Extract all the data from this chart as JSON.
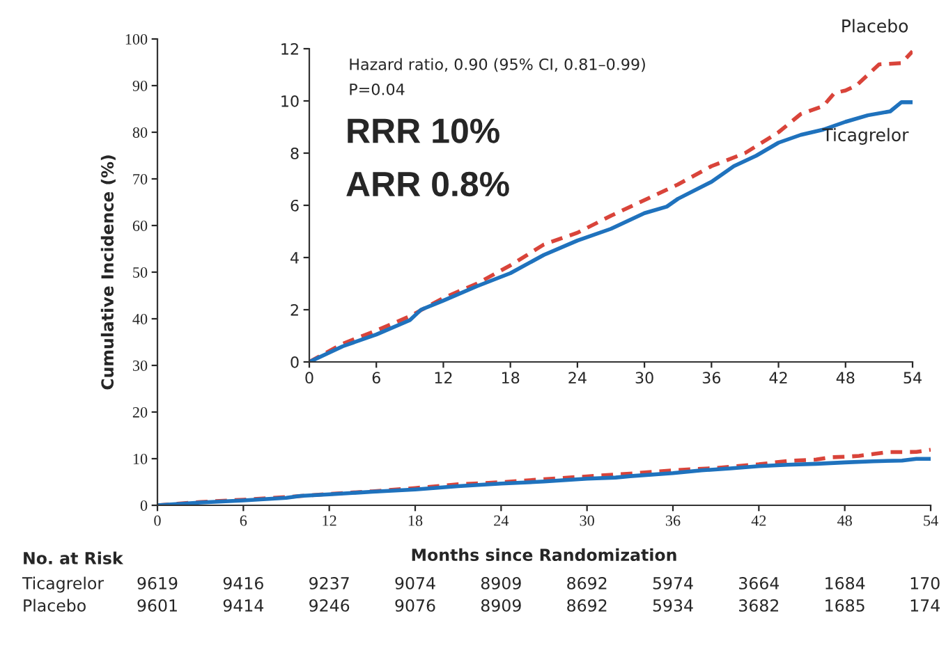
{
  "chart_data": [
    {
      "type": "line",
      "xlabel": "Months since Randomization",
      "ylabel": "Cumulative Incidence (%)",
      "xlim": [
        0,
        54
      ],
      "ylim": [
        0,
        100
      ],
      "xticks": [
        0,
        6,
        12,
        18,
        24,
        30,
        36,
        42,
        48,
        54
      ],
      "yticks": [
        0,
        10,
        20,
        30,
        40,
        50,
        60,
        70,
        80,
        90,
        100
      ],
      "grid": false,
      "legend": false,
      "series": [
        {
          "color": "#d9443a",
          "line_style": "dashed",
          "x": [
            0,
            3,
            6,
            9,
            12,
            15,
            18,
            21,
            24,
            27,
            30,
            32,
            33,
            36,
            39,
            42,
            44,
            46,
            47,
            48,
            49,
            50,
            51,
            53,
            54
          ],
          "values": [
            0,
            0.7,
            1.2,
            1.75,
            2.45,
            3.0,
            3.7,
            4.5,
            4.95,
            5.6,
            6.2,
            6.6,
            6.8,
            7.5,
            8.0,
            8.8,
            9.5,
            9.8,
            10.3,
            10.4,
            10.6,
            11.0,
            11.4,
            11.45,
            11.9
          ]
        },
        {
          "color": "#1f72bd",
          "line_style": "solid",
          "x": [
            0,
            3,
            6,
            9,
            10,
            12,
            15,
            18,
            21,
            24,
            27,
            30,
            32,
            33,
            36,
            38,
            40,
            42,
            44,
            46,
            48,
            50,
            52,
            53,
            54
          ],
          "values": [
            0,
            0.6,
            1.05,
            1.6,
            2.0,
            2.35,
            2.9,
            3.4,
            4.1,
            4.65,
            5.1,
            5.7,
            5.95,
            6.25,
            6.9,
            7.5,
            7.9,
            8.4,
            8.7,
            8.9,
            9.2,
            9.45,
            9.6,
            9.95,
            9.95
          ]
        }
      ],
      "annotations": [
        "No. at Risk",
        "Ticagrelor",
        "9619",
        "9416",
        "9237",
        "9074",
        "8909",
        "8692",
        "5974",
        "3664",
        "1684",
        "170",
        "Placebo",
        "9601",
        "9414",
        "9246",
        "9076",
        "8909",
        "8692",
        "5934",
        "3682",
        "1685",
        "174"
      ]
    },
    {
      "type": "line",
      "xlim": [
        0,
        54
      ],
      "ylim": [
        0,
        12
      ],
      "xticks": [
        0,
        6,
        12,
        18,
        24,
        30,
        36,
        42,
        48,
        54
      ],
      "yticks": [
        0,
        2,
        4,
        6,
        8,
        10,
        12
      ],
      "grid": false,
      "legend": false,
      "series": [
        {
          "name": "Placebo",
          "color": "#d9443a",
          "line_style": "dashed",
          "x": [
            0,
            3,
            6,
            9,
            12,
            15,
            18,
            21,
            24,
            27,
            30,
            32,
            33,
            36,
            39,
            42,
            44,
            46,
            47,
            48,
            49,
            50,
            51,
            53,
            54
          ],
          "values": [
            0,
            0.7,
            1.2,
            1.75,
            2.45,
            3.0,
            3.7,
            4.5,
            4.95,
            5.6,
            6.2,
            6.6,
            6.8,
            7.5,
            8.0,
            8.8,
            9.5,
            9.8,
            10.3,
            10.4,
            10.6,
            11.0,
            11.4,
            11.45,
            11.9
          ]
        },
        {
          "name": "Ticagrelor",
          "color": "#1f72bd",
          "line_style": "solid",
          "x": [
            0,
            3,
            6,
            9,
            10,
            12,
            15,
            18,
            21,
            24,
            27,
            30,
            32,
            33,
            36,
            38,
            40,
            42,
            44,
            46,
            48,
            50,
            52,
            53,
            54
          ],
          "values": [
            0,
            0.6,
            1.05,
            1.6,
            2.0,
            2.35,
            2.9,
            3.4,
            4.1,
            4.65,
            5.1,
            5.7,
            5.95,
            6.25,
            6.9,
            7.5,
            7.9,
            8.4,
            8.7,
            8.9,
            9.2,
            9.45,
            9.6,
            9.95,
            9.95
          ]
        }
      ],
      "annotations": [
        "Hazard ratio, 0.90 (95% CI, 0.81–0.99)",
        "P=0.04",
        "RRR 10%",
        "ARR 0.8%"
      ]
    }
  ]
}
